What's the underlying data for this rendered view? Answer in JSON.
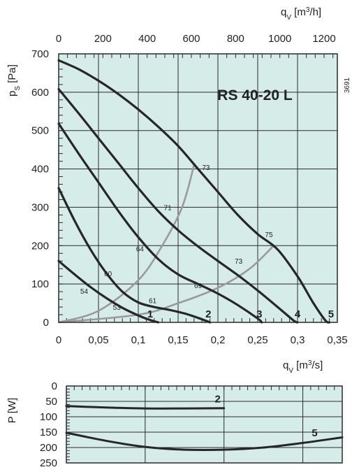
{
  "chart_data": [
    {
      "type": "line",
      "model_label": "RS 40-20 L",
      "code": "3691",
      "xlabel": "qv [m3/s]",
      "x2label": "qv [m3/h]",
      "ylabel": "ps [Pa]",
      "xlim": [
        0,
        0.35
      ],
      "ylim": [
        0,
        700
      ],
      "x_ticks": [
        "0",
        "0,05",
        "0,1",
        "0,15",
        "0,2",
        "0,25",
        "0,3",
        "0,35"
      ],
      "x2_ticks": [
        "0",
        "200",
        "400",
        "600",
        "800",
        "1000",
        "1200"
      ],
      "y_ticks": [
        "0",
        "100",
        "200",
        "300",
        "400",
        "500",
        "600",
        "700"
      ],
      "grid": true,
      "series": [
        {
          "name": "1",
          "points": [
            [
              0,
              160
            ],
            [
              0.02,
              125
            ],
            [
              0.04,
              92
            ],
            [
              0.06,
              63
            ],
            [
              0.08,
              38
            ],
            [
              0.1,
              18
            ],
            [
              0.115,
              6
            ],
            [
              0.125,
              0
            ]
          ]
        },
        {
          "name": "2",
          "points": [
            [
              0,
              350
            ],
            [
              0.02,
              265
            ],
            [
              0.04,
              190
            ],
            [
              0.06,
              128
            ],
            [
              0.08,
              80
            ],
            [
              0.1,
              52
            ],
            [
              0.12,
              40
            ],
            [
              0.14,
              32
            ],
            [
              0.16,
              22
            ],
            [
              0.18,
              8
            ],
            [
              0.19,
              0
            ]
          ]
        },
        {
          "name": "3",
          "points": [
            [
              0,
              518
            ],
            [
              0.025,
              440
            ],
            [
              0.05,
              365
            ],
            [
              0.075,
              290
            ],
            [
              0.1,
              222
            ],
            [
              0.125,
              165
            ],
            [
              0.15,
              125
            ],
            [
              0.175,
              100
            ],
            [
              0.2,
              75
            ],
            [
              0.225,
              45
            ],
            [
              0.25,
              10
            ],
            [
              0.255,
              0
            ]
          ]
        },
        {
          "name": "4",
          "points": [
            [
              0,
              608
            ],
            [
              0.025,
              545
            ],
            [
              0.05,
              480
            ],
            [
              0.075,
              415
            ],
            [
              0.1,
              350
            ],
            [
              0.125,
              290
            ],
            [
              0.15,
              240
            ],
            [
              0.175,
              198
            ],
            [
              0.2,
              160
            ],
            [
              0.225,
              123
            ],
            [
              0.25,
              83
            ],
            [
              0.275,
              40
            ],
            [
              0.295,
              5
            ],
            [
              0.3,
              0
            ]
          ]
        },
        {
          "name": "5",
          "points": [
            [
              0,
              683
            ],
            [
              0.025,
              660
            ],
            [
              0.05,
              630
            ],
            [
              0.075,
              595
            ],
            [
              0.1,
              555
            ],
            [
              0.125,
              510
            ],
            [
              0.15,
              460
            ],
            [
              0.175,
              400
            ],
            [
              0.2,
              340
            ],
            [
              0.225,
              280
            ],
            [
              0.25,
              230
            ],
            [
              0.275,
              190
            ],
            [
              0.3,
              120
            ],
            [
              0.32,
              50
            ],
            [
              0.335,
              5
            ],
            [
              0.34,
              0
            ]
          ]
        }
      ],
      "efficiency_lines": [
        {
          "points": [
            [
              0,
              0
            ],
            [
              0.05,
              30
            ],
            [
              0.1,
              110
            ],
            [
              0.13,
              200
            ],
            [
              0.155,
              300
            ],
            [
              0.17,
              410
            ]
          ]
        },
        {
          "points": [
            [
              0,
              0
            ],
            [
              0.1,
              20
            ],
            [
              0.15,
              50
            ],
            [
              0.2,
              90
            ],
            [
              0.24,
              140
            ],
            [
              0.27,
              200
            ]
          ]
        }
      ],
      "efficiency_labels": [
        {
          "text": "73",
          "x": 0.185,
          "y": 405
        },
        {
          "text": "71",
          "x": 0.137,
          "y": 300
        },
        {
          "text": "64",
          "x": 0.102,
          "y": 192
        },
        {
          "text": "60",
          "x": 0.062,
          "y": 128
        },
        {
          "text": "54",
          "x": 0.032,
          "y": 82
        },
        {
          "text": "53",
          "x": 0.073,
          "y": 40
        },
        {
          "text": "61",
          "x": 0.118,
          "y": 57
        },
        {
          "text": "69",
          "x": 0.175,
          "y": 97
        },
        {
          "text": "73",
          "x": 0.226,
          "y": 160
        },
        {
          "text": "75",
          "x": 0.264,
          "y": 230
        }
      ],
      "curve_labels": [
        {
          "text": "1",
          "x": 0.115,
          "y": 16
        },
        {
          "text": "2",
          "x": 0.188,
          "y": 16
        },
        {
          "text": "3",
          "x": 0.252,
          "y": 16
        },
        {
          "text": "4",
          "x": 0.3,
          "y": 16
        },
        {
          "text": "5",
          "x": 0.342,
          "y": 16
        }
      ]
    },
    {
      "type": "line",
      "ylabel": "P [W]",
      "xlim": [
        0,
        0.35
      ],
      "ylim": [
        0,
        250
      ],
      "y_inverted": true,
      "y_ticks": [
        "0",
        "50",
        "100",
        "150",
        "200",
        "250"
      ],
      "grid": true,
      "series": [
        {
          "name": "2",
          "points": [
            [
              0,
              65
            ],
            [
              0.05,
              70
            ],
            [
              0.1,
              73
            ],
            [
              0.15,
              73
            ],
            [
              0.2,
              72
            ]
          ]
        },
        {
          "name": "5",
          "points": [
            [
              0,
              152
            ],
            [
              0.05,
              178
            ],
            [
              0.1,
              198
            ],
            [
              0.15,
              207
            ],
            [
              0.2,
              207
            ],
            [
              0.25,
              200
            ],
            [
              0.3,
              185
            ],
            [
              0.35,
              167
            ]
          ]
        }
      ],
      "curve_labels": [
        {
          "text": "2",
          "x": 0.192,
          "y": 42
        },
        {
          "text": "5",
          "x": 0.315,
          "y": 152
        }
      ]
    }
  ],
  "colors": {
    "plot_bg": "#d6ece9",
    "curve": "#262626",
    "efficiency": "#9a9a9a",
    "grid": "#2a2a2a"
  }
}
